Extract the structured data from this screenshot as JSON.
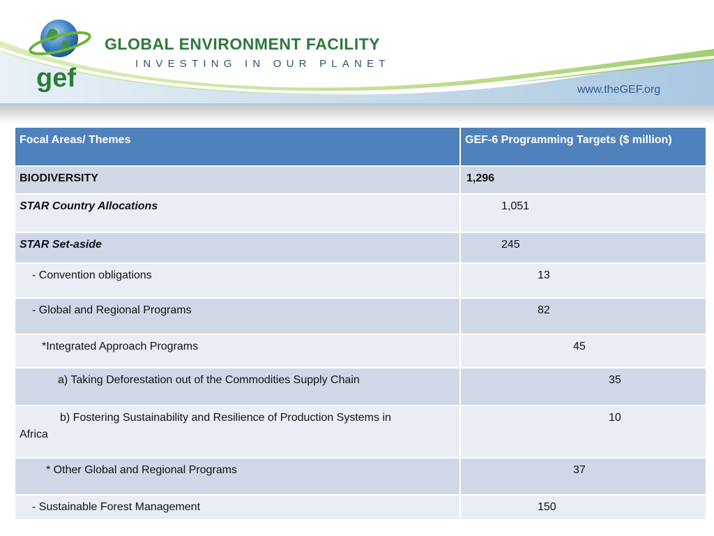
{
  "header": {
    "org_name": "GLOBAL ENVIRONMENT FACILITY",
    "tagline": "INVESTING IN OUR PLANET",
    "logo_text": "gef",
    "url": "www.theGEF.org"
  },
  "table": {
    "headers": [
      "Focal Areas/ Themes",
      "GEF-6 Programming Targets ($ million)"
    ],
    "rows": [
      {
        "label": "BIODIVERSITY",
        "value": "1,296"
      },
      {
        "label": "STAR Country Allocations",
        "value": "1,051"
      },
      {
        "label": "STAR Set-aside",
        "value": "245"
      },
      {
        "label": "- Convention obligations",
        "value": "13"
      },
      {
        "label": "- Global and Regional Programs",
        "value": "82"
      },
      {
        "label": "*Integrated Approach Programs",
        "value": "45"
      },
      {
        "label": "a) Taking Deforestation out of the Commodities Supply Chain",
        "value": "35"
      },
      {
        "label": "b) Fostering Sustainability and Resilience of Production Systems in",
        "label_cont": "Africa",
        "value": "10"
      },
      {
        "label": "* Other Global and Regional Programs",
        "value": "37"
      },
      {
        "label": "- Sustainable Forest Management",
        "value": "150"
      }
    ]
  },
  "colors": {
    "header_blue": "#4f81bd",
    "row_dark": "#d0d8e8",
    "row_light": "#e9edf4",
    "brand_green": "#2e7a3a",
    "brand_blue": "#2c4f7c"
  }
}
